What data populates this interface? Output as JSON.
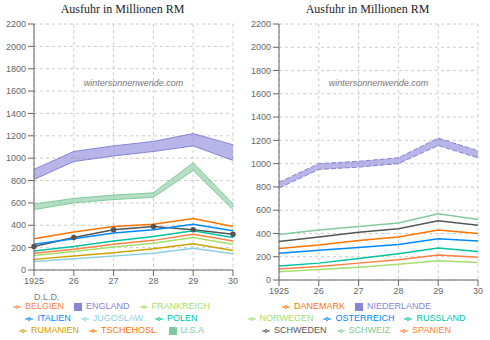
{
  "chart_data": [
    {
      "type": "line",
      "title": "Ausfuhr in Millionen RM",
      "categories": [
        "1925",
        "26",
        "27",
        "28",
        "29",
        "30"
      ],
      "ylim": [
        0,
        2200
      ],
      "yticks": [
        0,
        200,
        400,
        600,
        800,
        1000,
        1200,
        1400,
        1600,
        1800,
        2000,
        2200
      ],
      "grid": true,
      "legend": "bottom",
      "xlabel": "D.L.D.",
      "annotation": "wintersonnenwende.com",
      "series": [
        {
          "name": "ENGLAND",
          "type": "band",
          "values": [
            900,
            1060,
            1110,
            1150,
            1220,
            1120
          ],
          "lower": [
            810,
            970,
            1020,
            1060,
            1110,
            980
          ]
        },
        {
          "name": "U.S.A",
          "type": "band",
          "values": [
            590,
            640,
            670,
            690,
            960,
            590
          ],
          "lower": [
            540,
            600,
            630,
            650,
            890,
            540
          ]
        },
        {
          "type": "line",
          "marker": "circle",
          "values": [
            210,
            290,
            360,
            390,
            360,
            320
          ]
        },
        {
          "name": "TSCHEHOSL.",
          "type": "line",
          "values": [
            280,
            340,
            390,
            410,
            460,
            390
          ]
        },
        {
          "name": "ITALIEN",
          "type": "line",
          "values": [
            230,
            280,
            330,
            360,
            410,
            350
          ]
        },
        {
          "name": "POLEN",
          "type": "line",
          "values": [
            170,
            210,
            260,
            300,
            350,
            290
          ]
        },
        {
          "name": "BELGIEN",
          "type": "line",
          "values": [
            150,
            185,
            230,
            265,
            320,
            260
          ]
        },
        {
          "name": "FRANKREICH",
          "type": "line",
          "values": [
            130,
            165,
            205,
            240,
            290,
            230
          ]
        },
        {
          "name": "RUMANIEN",
          "type": "line",
          "values": [
            95,
            125,
            155,
            190,
            235,
            175
          ]
        },
        {
          "name": "JUGOSLAW.",
          "type": "line",
          "values": [
            75,
            100,
            125,
            150,
            195,
            145
          ]
        }
      ]
    },
    {
      "type": "line",
      "title": "Ausfuhr in Millionen RM",
      "categories": [
        "1925",
        "26",
        "27",
        "28",
        "29",
        "30"
      ],
      "ylim": [
        0,
        2200
      ],
      "yticks": [
        0,
        200,
        400,
        600,
        800,
        1000,
        1200,
        1400,
        1600,
        1800,
        2000,
        2200
      ],
      "grid": true,
      "legend": "bottom",
      "annotation": "wintersonnenwende.com",
      "series": [
        {
          "name": "NIEDERLANDE",
          "type": "band",
          "line_style": "dashed",
          "values": [
            840,
            1000,
            1020,
            1050,
            1220,
            1110
          ],
          "lower": [
            790,
            950,
            970,
            1000,
            1155,
            1050
          ]
        },
        {
          "name": "SCHWEIZ",
          "type": "line",
          "values": [
            390,
            430,
            460,
            490,
            570,
            520
          ]
        },
        {
          "name": "SCHWEDEN",
          "type": "line",
          "values": [
            330,
            370,
            410,
            440,
            510,
            470
          ]
        },
        {
          "name": "DANEMARK",
          "type": "line",
          "values": [
            270,
            300,
            340,
            370,
            430,
            400
          ]
        },
        {
          "name": "OSTERREICH",
          "type": "line",
          "values": [
            230,
            255,
            280,
            305,
            355,
            335
          ]
        },
        {
          "name": "RUSSLAND",
          "type": "line",
          "values": [
            120,
            145,
            185,
            225,
            275,
            245
          ]
        },
        {
          "name": "SPANIEN",
          "type": "line",
          "values": [
            95,
            115,
            145,
            175,
            215,
            195
          ]
        },
        {
          "name": "NORWEGEN",
          "type": "line",
          "values": [
            70,
            90,
            110,
            135,
            165,
            150
          ]
        }
      ]
    }
  ]
}
